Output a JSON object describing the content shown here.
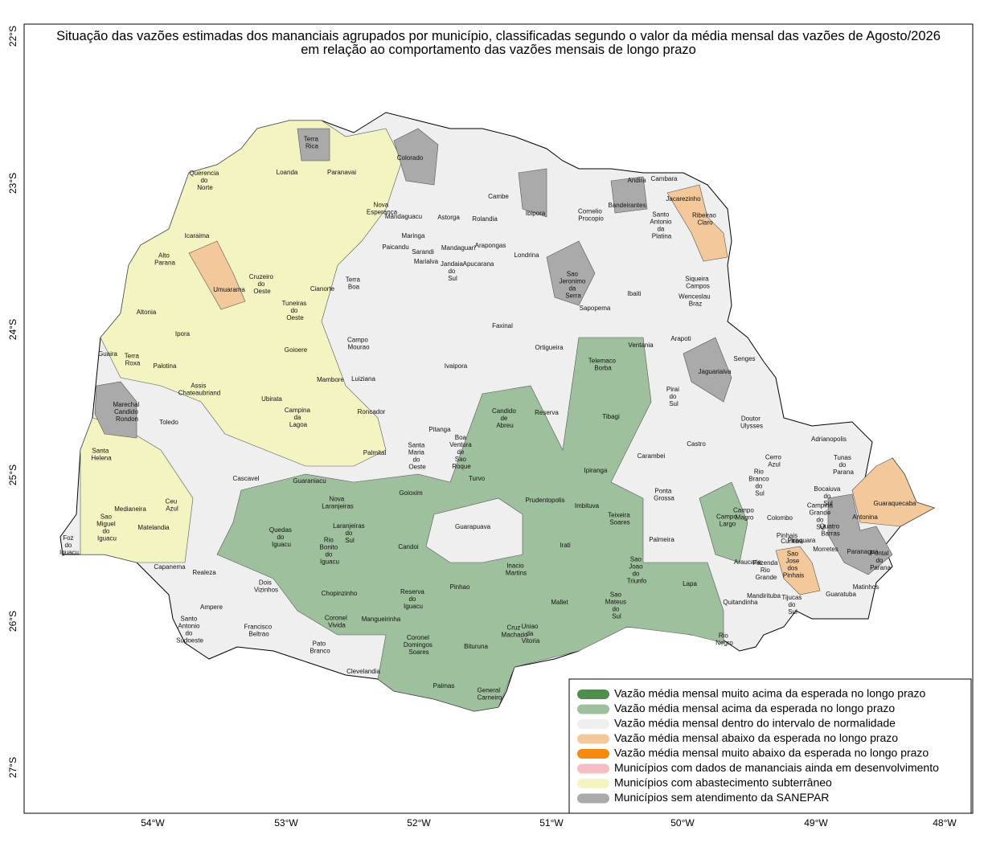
{
  "title": [
    "Situação das vazões estimadas dos mananciais agrupados por município, classificadas segundo o valor da média mensal das vazões de Agosto/2026",
    "em relação ao comportamento das vazões mensais de longo prazo"
  ],
  "lat_labels": [
    "22°S",
    "23°S",
    "24°S",
    "25°S",
    "26°S",
    "27°S"
  ],
  "lon_labels": [
    "54°W",
    "53°W",
    "52°W",
    "51°W",
    "50°W",
    "49°W",
    "48°W"
  ],
  "municipalities": [
    "Terra Rica",
    "Paranavai",
    "Colorado",
    "Loanda",
    "Querencia do Norte",
    "Nova Esperança",
    "Mandaguacu",
    "Cambe",
    "Andira",
    "Cambara",
    "Jacarezinho",
    "Bandeirantes",
    "Cornelio Procopio",
    "Ibipora",
    "Astorga",
    "Rolandia",
    "Santo Antonio da Platina",
    "Ribeirao Claro",
    "Icaraima",
    "Maringa",
    "Sarandi",
    "Paicandu",
    "Mandaguari",
    "Arapongas",
    "Marialva",
    "Jandaia do Sul",
    "Apucarana",
    "Londrina",
    "Alto Parana",
    "Umuarama",
    "Cruzeiro do Oeste",
    "Cianorte",
    "Terra Boa",
    "Sao Jeronimo da Serra",
    "Siqueira Campos",
    "Wenceslau Braz",
    "Ibaiti",
    "Sapopema",
    "Altonia",
    "Tuneiras do Oeste",
    "Ipora",
    "Faxinal",
    "Ortigueira",
    "Ventania",
    "Arapoti",
    "Guaira",
    "Terra Roxa",
    "Campo Mourao",
    "Goioere",
    "Telemaco Borba",
    "Senges",
    "Palotina",
    "Mambore",
    "Luiziana",
    "Ivaipora",
    "Jaguariaiva",
    "Assis Chateaubriand",
    "Pirai do Sul",
    "Marechal Candido Rondon",
    "Ubirata",
    "Toledo",
    "Campina da Lagoa",
    "Roncador",
    "Candido de Abreu",
    "Reserva",
    "Tibagi",
    "Doutor Ulysses",
    "Pitanga",
    "Boa Ventura de Sao Roque",
    "Castro",
    "Adrianopolis",
    "Santa Helena",
    "Palmital",
    "Santa Maria do Oeste",
    "Carambei",
    "Cerro Azul",
    "Tunas do Parana",
    "Cascavel",
    "Guaraniacu",
    "Turvo",
    "Ipiranga",
    "Ponta Grossa",
    "Rio Branco do Sul",
    "Bocaiuva do Sul",
    "Imbituva",
    "Prudentopolis",
    "Goioxim",
    "Nova Laranjeiras",
    "Ceu Azul",
    "Medianeira",
    "Teixeira Soares",
    "Campo Largo",
    "Campo Magro",
    "Colombo",
    "Campina Grande do Sul",
    "Quatro Barras",
    "Antonina",
    "Guaraquecaba",
    "Guarapuava",
    "Laranjeiras do Sul",
    "Quedas do Iguacu",
    "Sao Miguel do Iguacu",
    "Matelandia",
    "Foz do Iguacu",
    "Palmeira",
    "Curitiba",
    "Pinhais",
    "Piraquara",
    "Morretes",
    "Paranagua",
    "Pontal do Parana",
    "Irati",
    "Candoi",
    "Rio Bonito do Iguacu",
    "Capanema",
    "Araucaria",
    "Fazenda Rio Grande",
    "Sao Jose dos Pinhais",
    "Sao Joao do Triunfo",
    "Inacio Martins",
    "Realeza",
    "Matinhos",
    "Dois Vizinhos",
    "Pinhao",
    "Chopinzinho",
    "Reserva do Iguacu",
    "Lapa",
    "Mandirituba",
    "Tijucas do Sul",
    "Guaratuba",
    "Sao Mateus do Sul",
    "Mallet",
    "Quitandinha",
    "Ampere",
    "Coronel Vivida",
    "Mangueirinha",
    "Cruz Machado",
    "Francisco Beltrao",
    "Santo Antonio do Sudoeste",
    "Uniao da Vitoria",
    "Rio Negro",
    "Coronel Domingos Soares",
    "Bituruna",
    "Pato Branco",
    "Clevelandia",
    "Palmas",
    "General Carneiro"
  ],
  "legend": [
    {
      "label": "Vazão média mensal muito acima da esperada no longo prazo",
      "color": "#4e8f4e"
    },
    {
      "label": "Vazão média mensal acima da esperada no longo prazo",
      "color": "#9fc09d"
    },
    {
      "label": "Vazão média mensal dentro do intervalo de normalidade",
      "color": "#efefef"
    },
    {
      "label": "Vazão média mensal abaixo da esperada no longo prazo",
      "color": "#f3c89b"
    },
    {
      "label": "Vazão média mensal muito abaixo da esperada no longo prazo",
      "color": "#f6890f"
    },
    {
      "label": "Municípios com dados de mananciais ainda em desenvolvimento",
      "color": "#f5bec4"
    },
    {
      "label": "Municípios com abastecimento subterrâneo",
      "color": "#f4f4c2"
    },
    {
      "label": "Municípios sem atendimento da SANEPAR",
      "color": "#aaaaaa"
    }
  ]
}
